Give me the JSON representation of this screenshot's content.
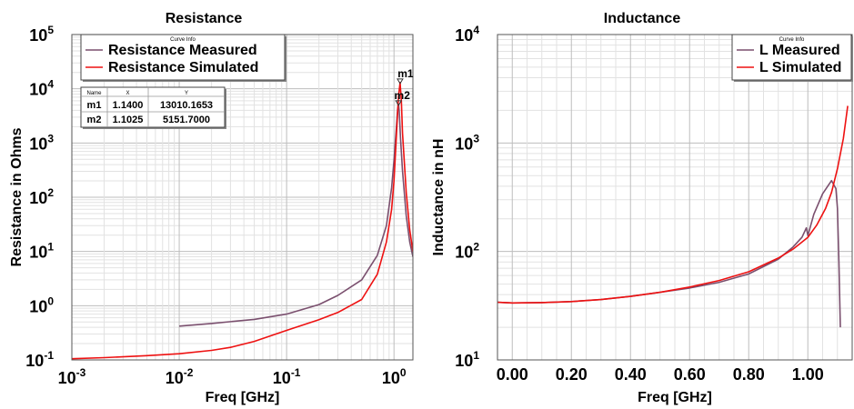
{
  "chart_data": [
    {
      "type": "line",
      "title": "Resistance",
      "xlabel": "Freq [GHz]",
      "ylabel": "Resistance in Ohms",
      "x_scale": "log",
      "y_scale": "log",
      "xlim": [
        0.001,
        1.5
      ],
      "ylim": [
        0.1,
        100000
      ],
      "grid": true,
      "legend": {
        "header": "Curve Info",
        "placement": "top-left",
        "entries": [
          "Resistance Measured",
          "Resistance Simulated"
        ]
      },
      "series": [
        {
          "name": "Resistance Measured",
          "color": "#7a4f6e",
          "x": [
            0.01,
            0.02,
            0.05,
            0.1,
            0.2,
            0.3,
            0.5,
            0.7,
            0.85,
            0.95,
            1.0,
            1.05,
            1.08,
            1.1025,
            1.12,
            1.15,
            1.2,
            1.3,
            1.4,
            1.5
          ],
          "y": [
            0.42,
            0.47,
            0.56,
            0.7,
            1.05,
            1.55,
            3.0,
            8.5,
            30,
            150,
            480,
            1800,
            4200,
            5151.7,
            3800,
            1200,
            300,
            45,
            15,
            8
          ]
        },
        {
          "name": "Resistance Simulated",
          "color": "#ee1111",
          "x": [
            0.001,
            0.002,
            0.005,
            0.01,
            0.02,
            0.03,
            0.05,
            0.1,
            0.2,
            0.3,
            0.5,
            0.7,
            0.85,
            0.95,
            1.0,
            1.05,
            1.1,
            1.14,
            1.17,
            1.2,
            1.3,
            1.4,
            1.5
          ],
          "y": [
            0.105,
            0.11,
            0.12,
            0.13,
            0.15,
            0.17,
            0.22,
            0.35,
            0.55,
            0.75,
            1.3,
            3.8,
            15,
            60,
            200,
            1200,
            7000,
            13010.1653,
            6000,
            1500,
            120,
            25,
            10
          ]
        }
      ],
      "markers": {
        "header": {
          "name": "Name",
          "x": "X",
          "y": "Y"
        },
        "rows": [
          {
            "name": "m1",
            "x": "1.1400",
            "y": "13010.1653",
            "xv": 1.14,
            "yv": 13010.1653
          },
          {
            "name": "m2",
            "x": "1.1025",
            "y": "5151.7000",
            "xv": 1.1025,
            "yv": 5151.7
          }
        ]
      },
      "x_ticks": [
        {
          "v": 0.001,
          "base": "10",
          "exp": "-3"
        },
        {
          "v": 0.01,
          "base": "10",
          "exp": "-2"
        },
        {
          "v": 0.1,
          "base": "10",
          "exp": "-1"
        },
        {
          "v": 1,
          "base": "10",
          "exp": "0"
        }
      ],
      "y_ticks": [
        {
          "v": 0.1,
          "base": "10",
          "exp": "-1"
        },
        {
          "v": 1,
          "base": "10",
          "exp": "0"
        },
        {
          "v": 10,
          "base": "10",
          "exp": "1"
        },
        {
          "v": 100,
          "base": "10",
          "exp": "2"
        },
        {
          "v": 1000,
          "base": "10",
          "exp": "3"
        },
        {
          "v": 10000,
          "base": "10",
          "exp": "4"
        },
        {
          "v": 100000,
          "base": "10",
          "exp": "5"
        }
      ]
    },
    {
      "type": "line",
      "title": "Inductance",
      "xlabel": "Freq [GHz]",
      "ylabel": "Inductance in nH",
      "x_scale": "linear",
      "y_scale": "log",
      "xlim": [
        -0.05,
        1.15
      ],
      "ylim": [
        10,
        10000
      ],
      "grid": true,
      "legend": {
        "header": "Curve Info",
        "placement": "top-right",
        "entries": [
          "L Measured",
          "L Simulated"
        ]
      },
      "series": [
        {
          "name": "L Measured",
          "color": "#7a4f6e",
          "x": [
            -0.05,
            0.0,
            0.1,
            0.2,
            0.3,
            0.4,
            0.5,
            0.6,
            0.7,
            0.8,
            0.9,
            0.95,
            0.98,
            0.995,
            1.0,
            1.02,
            1.05,
            1.08,
            1.095,
            1.1,
            1.105,
            1.11
          ],
          "y": [
            34,
            33.5,
            33.8,
            34.5,
            36,
            38.5,
            42,
            46,
            52,
            62,
            85,
            110,
            135,
            165,
            140,
            220,
            340,
            450,
            380,
            250,
            80,
            20
          ]
        },
        {
          "name": "L Simulated",
          "color": "#ee1111",
          "x": [
            -0.05,
            0.0,
            0.1,
            0.2,
            0.3,
            0.4,
            0.5,
            0.6,
            0.7,
            0.8,
            0.9,
            0.95,
            1.0,
            1.03,
            1.06,
            1.08,
            1.1,
            1.12,
            1.135
          ],
          "y": [
            34,
            33.5,
            33.8,
            34.5,
            36,
            38.5,
            42,
            47,
            54,
            65,
            87,
            105,
            135,
            175,
            250,
            350,
            580,
            1100,
            2200
          ]
        }
      ],
      "x_ticks": [
        {
          "v": 0.0,
          "label": "0.00"
        },
        {
          "v": 0.2,
          "label": "0.20"
        },
        {
          "v": 0.4,
          "label": "0.40"
        },
        {
          "v": 0.6,
          "label": "0.60"
        },
        {
          "v": 0.8,
          "label": "0.80"
        },
        {
          "v": 1.0,
          "label": "1.00"
        }
      ],
      "y_ticks": [
        {
          "v": 10,
          "base": "10",
          "exp": "1"
        },
        {
          "v": 100,
          "base": "10",
          "exp": "2"
        },
        {
          "v": 1000,
          "base": "10",
          "exp": "3"
        },
        {
          "v": 10000,
          "base": "10",
          "exp": "4"
        }
      ]
    }
  ]
}
